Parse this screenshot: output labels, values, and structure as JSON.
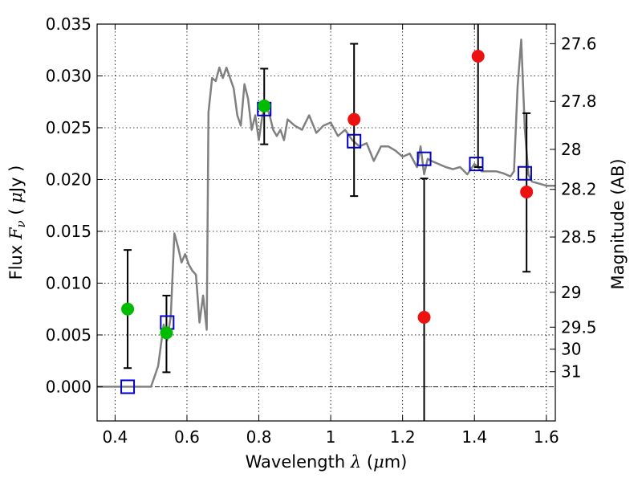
{
  "chart_data": {
    "type": "scatter",
    "xlabel": "Wavelength",
    "xlabel_symbol": "λ",
    "xlabel_unit_open": " (",
    "xlabel_unit_mu": "μ",
    "xlabel_unit_close": "m)",
    "ylabel": "Flux",
    "ylabel_symbol": "F",
    "ylabel_sub": "ν",
    "ylabel_unit_open": " ( ",
    "ylabel_unit_mu": "μ",
    "ylabel_unit_close": "Jy )",
    "y2label": "Magnitude (AB)",
    "xlim": [
      0.35,
      1.625
    ],
    "ylim": [
      -0.0033,
      0.035
    ],
    "grid": true,
    "x_ticks": [
      0.4,
      0.6,
      0.8,
      1.0,
      1.2,
      1.4,
      1.6
    ],
    "x_tick_labels": [
      "0.4",
      "0.6",
      "0.8",
      "1",
      "1.2",
      "1.4",
      "1.6"
    ],
    "y_ticks": [
      0.0,
      0.005,
      0.01,
      0.015,
      0.02,
      0.025,
      0.03,
      0.035
    ],
    "y_tick_labels": [
      "0.000",
      "0.005",
      "0.010",
      "0.015",
      "0.020",
      "0.025",
      "0.030",
      "0.035"
    ],
    "magnitude_ticks": [
      {
        "label": "27.6",
        "flux": 0.03311
      },
      {
        "label": "27.8",
        "flux": 0.02754
      },
      {
        "label": "28",
        "flux": 0.02291
      },
      {
        "label": "28.2",
        "flux": 0.01905
      },
      {
        "label": "28.5",
        "flux": 0.01445
      },
      {
        "label": "29",
        "flux": 0.00912
      },
      {
        "label": "29.5",
        "flux": 0.00575
      },
      {
        "label": "30",
        "flux": 0.00363
      },
      {
        "label": "31",
        "flux": 0.00145
      }
    ],
    "zero_line": 0.0,
    "colors": {
      "template": "#808080",
      "model": "#0000cc",
      "detected": "#00bb00",
      "undetected": "#ee1111",
      "errorbar": "#000000"
    },
    "series": [
      {
        "type": "line",
        "role": "template",
        "x": [
          0.35,
          0.5,
          0.52,
          0.535,
          0.545,
          0.555,
          0.565,
          0.575,
          0.585,
          0.595,
          0.605,
          0.615,
          0.625,
          0.635,
          0.645,
          0.655,
          0.66,
          0.67,
          0.68,
          0.69,
          0.7,
          0.71,
          0.72,
          0.73,
          0.74,
          0.75,
          0.76,
          0.77,
          0.78,
          0.79,
          0.8,
          0.81,
          0.82,
          0.83,
          0.84,
          0.85,
          0.86,
          0.87,
          0.88,
          0.9,
          0.92,
          0.94,
          0.96,
          0.98,
          1.0,
          1.02,
          1.04,
          1.06,
          1.08,
          1.1,
          1.12,
          1.14,
          1.16,
          1.18,
          1.2,
          1.22,
          1.24,
          1.25,
          1.26,
          1.27,
          1.28,
          1.3,
          1.32,
          1.34,
          1.36,
          1.38,
          1.4,
          1.42,
          1.44,
          1.46,
          1.48,
          1.5,
          1.51,
          1.52,
          1.53,
          1.54,
          1.55,
          1.56,
          1.58,
          1.6,
          1.625
        ],
        "y": [
          0.0,
          0.0,
          0.002,
          0.006,
          0.0045,
          0.0068,
          0.0148,
          0.0135,
          0.012,
          0.0128,
          0.0118,
          0.0112,
          0.0108,
          0.0062,
          0.0088,
          0.0055,
          0.0265,
          0.0298,
          0.0295,
          0.0308,
          0.0298,
          0.0308,
          0.0298,
          0.0288,
          0.0262,
          0.0252,
          0.0292,
          0.0278,
          0.0248,
          0.0262,
          0.0238,
          0.0262,
          0.0272,
          0.0262,
          0.0248,
          0.0242,
          0.0248,
          0.0238,
          0.0258,
          0.0252,
          0.0248,
          0.0262,
          0.0245,
          0.0252,
          0.0255,
          0.0242,
          0.0248,
          0.0238,
          0.0232,
          0.0235,
          0.0218,
          0.0232,
          0.0232,
          0.0228,
          0.0222,
          0.0225,
          0.0212,
          0.0232,
          0.0205,
          0.022,
          0.0218,
          0.0215,
          0.0212,
          0.021,
          0.0212,
          0.0205,
          0.0215,
          0.0208,
          0.0208,
          0.0208,
          0.0206,
          0.0203,
          0.0208,
          0.029,
          0.0335,
          0.025,
          0.0205,
          0.0198,
          0.0196,
          0.0194,
          0.0194
        ]
      },
      {
        "type": "scatter",
        "role": "model",
        "marker": "square",
        "x": [
          0.435,
          0.545,
          0.815,
          1.065,
          1.26,
          1.405,
          1.54
        ],
        "y": [
          0.0,
          0.0062,
          0.0268,
          0.0237,
          0.022,
          0.0215,
          0.0206
        ]
      },
      {
        "type": "scatter",
        "role": "detected",
        "marker": "circle",
        "x": [
          0.435,
          0.543,
          0.815
        ],
        "y": [
          0.0075,
          0.0052,
          0.0271
        ],
        "err_low": [
          0.0018,
          0.0014,
          0.0234
        ],
        "err_high": [
          0.0132,
          0.0088,
          0.0307
        ]
      },
      {
        "type": "scatter",
        "role": "undetected",
        "marker": "circle",
        "x": [
          1.065,
          1.26,
          1.41,
          1.545
        ],
        "y": [
          0.0258,
          0.0067,
          0.0319,
          0.0188
        ],
        "err_low": [
          0.0184,
          -0.0033,
          0.0212,
          0.0111
        ],
        "err_high": [
          0.0331,
          0.0201,
          0.035,
          0.0264
        ]
      }
    ]
  }
}
